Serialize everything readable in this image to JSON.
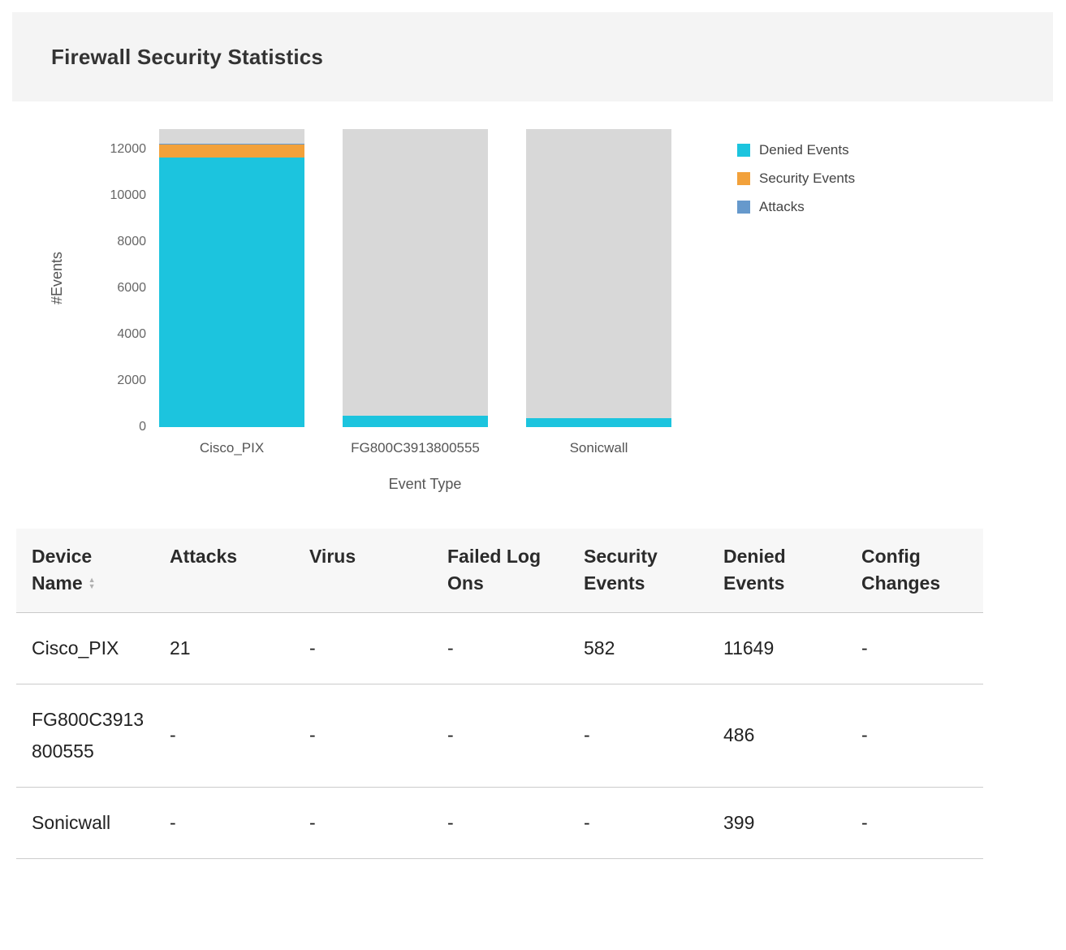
{
  "header": {
    "title": "Firewall Security Statistics"
  },
  "chart_data": {
    "type": "bar",
    "stacked": true,
    "title": "",
    "xlabel": "Event Type",
    "ylabel": "#Events",
    "categories": [
      "Cisco_PIX",
      "FG800C3913800555",
      "Sonicwall"
    ],
    "series": [
      {
        "name": "Denied Events",
        "color": "#1cc4de",
        "values": [
          11649,
          486,
          399
        ]
      },
      {
        "name": "Security Events",
        "color": "#f2a13b",
        "values": [
          582,
          0,
          0
        ]
      },
      {
        "name": "Attacks",
        "color": "#6699cc",
        "values": [
          21,
          0,
          0
        ]
      }
    ],
    "ylim": [
      0,
      12880
    ],
    "yticks": [
      0,
      2000,
      4000,
      6000,
      8000,
      10000,
      12000
    ],
    "grid": false,
    "legend_position": "right",
    "track_color": "#d8d8d8"
  },
  "table": {
    "columns": [
      "Device Name",
      "Attacks",
      "Virus",
      "Failed Log Ons",
      "Security Events",
      "Denied Events",
      "Config Changes"
    ],
    "rows": [
      [
        "Cisco_PIX",
        "21",
        "-",
        "-",
        "582",
        "11649",
        "-"
      ],
      [
        "FG800C3913800555",
        "-",
        "-",
        "-",
        "-",
        "486",
        "-"
      ],
      [
        "Sonicwall",
        "-",
        "-",
        "-",
        "-",
        "399",
        "-"
      ]
    ]
  }
}
